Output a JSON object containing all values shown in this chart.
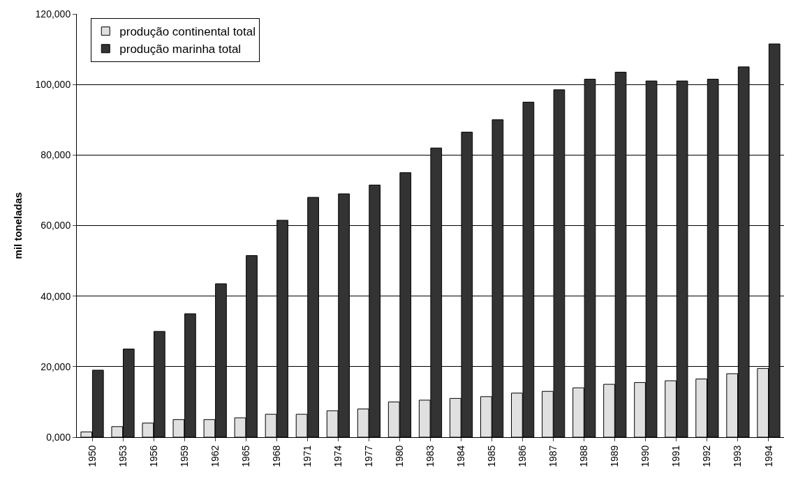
{
  "chart_data": {
    "type": "bar",
    "ylabel": "mil toneladas",
    "categories": [
      "1950",
      "1953",
      "1956",
      "1959",
      "1962",
      "1965",
      "1968",
      "1971",
      "1974",
      "1977",
      "1980",
      "1983",
      "1984",
      "1985",
      "1986",
      "1987",
      "1988",
      "1989",
      "1990",
      "1991",
      "1992",
      "1993",
      "1994"
    ],
    "series": [
      {
        "name": "produção continental total",
        "color": "#e0e0e0",
        "values": [
          1500,
          3000,
          4000,
          5000,
          5000,
          5500,
          6500,
          6500,
          7500,
          8000,
          10000,
          10500,
          11000,
          11500,
          12500,
          13000,
          14000,
          15000,
          15500,
          16000,
          16500,
          18000,
          19500
        ]
      },
      {
        "name": "produção marinha total",
        "color": "#333333",
        "values": [
          19000,
          25000,
          30000,
          35000,
          43500,
          51500,
          61500,
          68000,
          69000,
          71500,
          75000,
          82000,
          86500,
          90000,
          95000,
          98500,
          101500,
          103500,
          101000,
          101000,
          101500,
          105000,
          111500
        ]
      }
    ],
    "ylim": [
      0,
      120000
    ],
    "yticks": [
      {
        "value": 0,
        "label": "0,000"
      },
      {
        "value": 20000,
        "label": "20,000"
      },
      {
        "value": 40000,
        "label": "40,000"
      },
      {
        "value": 60000,
        "label": "60,000"
      },
      {
        "value": 80000,
        "label": "80,000"
      },
      {
        "value": 100000,
        "label": "100,000"
      },
      {
        "value": 120000,
        "label": "120,000"
      }
    ],
    "grid": "y",
    "legend": "top left"
  }
}
